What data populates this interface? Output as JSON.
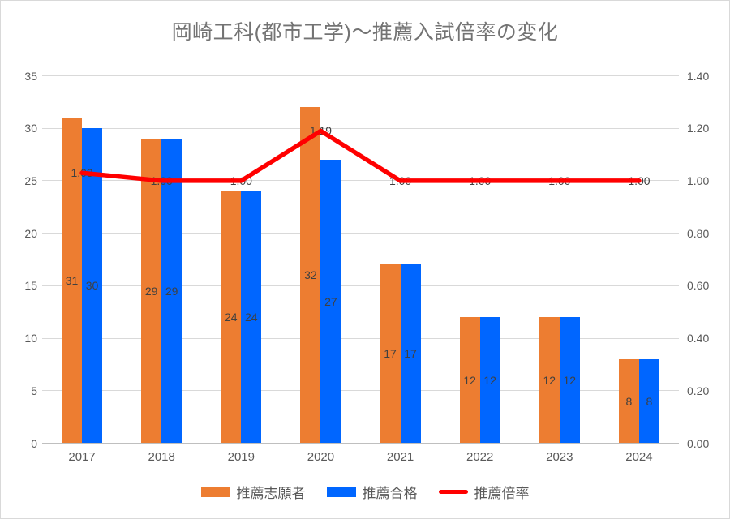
{
  "title": "岡崎工科(都市工学)～推薦入試倍率の変化",
  "colors": {
    "applicants": "#ED7D31",
    "accepted": "#0066FF",
    "ratio": "#FF0000",
    "grid": "#D9D9D9",
    "axis_line": "#BFBFBF",
    "axis_text": "#595959",
    "data_label_text": "#404040",
    "title_text": "#737373"
  },
  "chart_data": {
    "type": "bar+line combo",
    "title": "岡崎工科(都市工学)～推薦入試倍率の変化",
    "categories": [
      "2017",
      "2018",
      "2019",
      "2020",
      "2021",
      "2022",
      "2023",
      "2024"
    ],
    "series": [
      {
        "key": "applicants",
        "name": "推薦志願者",
        "type": "bar",
        "axis": "left",
        "color": "#ED7D31",
        "values": [
          31,
          29,
          24,
          32,
          17,
          12,
          12,
          8
        ],
        "labels": [
          "31",
          "29",
          "24",
          "32",
          "17",
          "12",
          "12",
          "8"
        ]
      },
      {
        "key": "accepted",
        "name": "推薦合格",
        "type": "bar",
        "axis": "left",
        "color": "#0066FF",
        "values": [
          30,
          29,
          24,
          27,
          17,
          12,
          12,
          8
        ],
        "labels": [
          "30",
          "29",
          "24",
          "27",
          "17",
          "12",
          "12",
          "8"
        ]
      },
      {
        "key": "ratio",
        "name": "推薦倍率",
        "type": "line",
        "axis": "right",
        "color": "#FF0000",
        "values": [
          1.03,
          1.0,
          1.0,
          1.19,
          1.0,
          1.0,
          1.0,
          1.0
        ],
        "labels": [
          "1.03",
          "1.00",
          "1.00",
          "1.19",
          "1.00",
          "1.00",
          "1.00",
          "1.00"
        ]
      }
    ],
    "left_axis": {
      "min": 0,
      "max": 35,
      "step": 5,
      "ticks": [
        "0",
        "5",
        "10",
        "15",
        "20",
        "25",
        "30",
        "35"
      ]
    },
    "right_axis": {
      "min": 0,
      "max": 1.4,
      "step": 0.2,
      "ticks": [
        "0.00",
        "0.20",
        "0.40",
        "0.60",
        "0.80",
        "1.00",
        "1.20",
        "1.40"
      ]
    },
    "legend": {
      "position": "bottom",
      "entries": [
        "推薦志願者",
        "推薦合格",
        "推薦倍率"
      ]
    },
    "grid": true
  }
}
